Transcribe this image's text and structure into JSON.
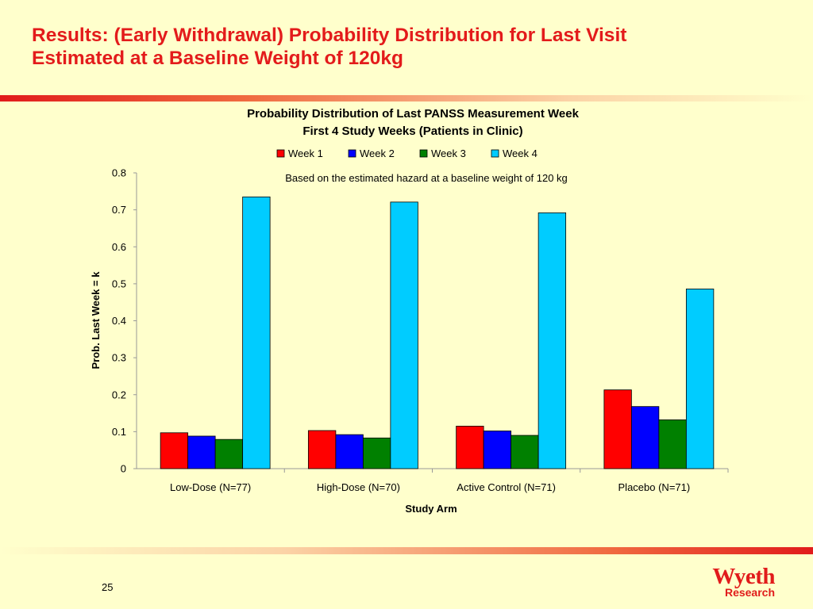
{
  "slide": {
    "title_line1": "Results: (Early Withdrawal) Probability Distribution for Last Visit",
    "title_line2": "Estimated at a Baseline Weight of 120kg",
    "page_number": "25",
    "logo_text": "Wyeth",
    "logo_subtext": "Research",
    "colors": {
      "background": "#FFFFCC",
      "title": "#E31B1B",
      "brand": "#E11B1B"
    }
  },
  "chart_data": {
    "type": "bar",
    "title": "Probability Distribution of Last PANSS Measurement Week",
    "subtitle": "First 4 Study Weeks (Patients in Clinic)",
    "annotation": "Based on the estimated hazard at a baseline weight of 120 kg",
    "xlabel": "Study Arm",
    "ylabel": "Prob. Last Week = k",
    "ylim": [
      0,
      0.8
    ],
    "yticks": [
      "0",
      "0.1",
      "0.2",
      "0.3",
      "0.4",
      "0.5",
      "0.6",
      "0.7",
      "0.8"
    ],
    "grid": false,
    "legend_position": "top",
    "categories": [
      "Low-Dose (N=77)",
      "High-Dose (N=70)",
      "Active Control (N=71)",
      "Placebo (N=71)"
    ],
    "series": [
      {
        "name": "Week 1",
        "color": "#FF0000",
        "values": [
          0.097,
          0.103,
          0.115,
          0.213
        ]
      },
      {
        "name": "Week 2",
        "color": "#0000FF",
        "values": [
          0.088,
          0.092,
          0.102,
          0.168
        ]
      },
      {
        "name": "Week 3",
        "color": "#008000",
        "values": [
          0.079,
          0.083,
          0.09,
          0.132
        ]
      },
      {
        "name": "Week 4",
        "color": "#00CCFF",
        "values": [
          0.735,
          0.721,
          0.692,
          0.486
        ]
      }
    ]
  }
}
